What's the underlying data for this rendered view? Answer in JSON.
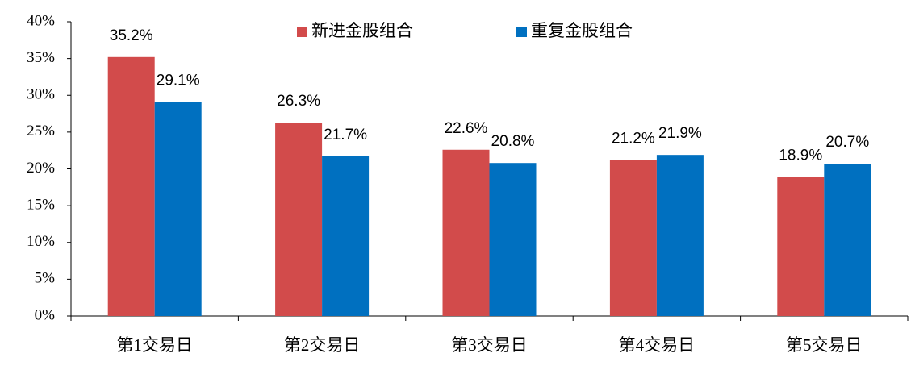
{
  "chart_data": {
    "type": "bar",
    "categories": [
      "第1交易日",
      "第2交易日",
      "第3交易日",
      "第4交易日",
      "第5交易日"
    ],
    "series": [
      {
        "name": "新进金股组合",
        "color": "#d24b4b",
        "values": [
          35.2,
          26.3,
          22.6,
          21.2,
          18.9
        ],
        "value_labels": [
          "35.2%",
          "26.3%",
          "22.6%",
          "21.2%",
          "18.9%"
        ]
      },
      {
        "name": "重复金股组合",
        "color": "#0070c0",
        "values": [
          29.1,
          21.7,
          20.8,
          21.9,
          20.7
        ],
        "value_labels": [
          "29.1%",
          "21.7%",
          "20.8%",
          "21.9%",
          "20.7%"
        ]
      }
    ],
    "ylim": [
      0,
      40
    ],
    "yticks": [
      {
        "value": 0,
        "label": "0%"
      },
      {
        "value": 5,
        "label": "5%"
      },
      {
        "value": 10,
        "label": "10%"
      },
      {
        "value": 15,
        "label": "15%"
      },
      {
        "value": 20,
        "label": "20%"
      },
      {
        "value": 25,
        "label": "25%"
      },
      {
        "value": 30,
        "label": "30%"
      },
      {
        "value": 35,
        "label": "35%"
      },
      {
        "value": 40,
        "label": "40%"
      }
    ],
    "legend": "top"
  }
}
